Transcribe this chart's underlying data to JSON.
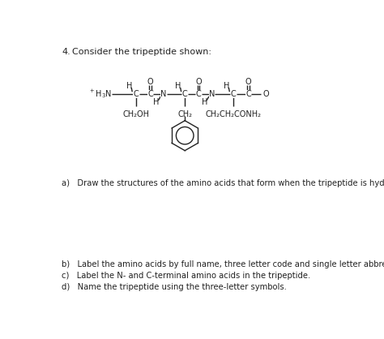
{
  "title_number": "4.",
  "title_text": "Consider the tripeptide shown:",
  "question_a": "a)   Draw the structures of the amino acids that form when the tripeptide is hydrolyzed.",
  "question_b": "b)   Label the amino acids by full name, three letter code and single letter abbreviation.",
  "question_c": "c)   Label the N- and C-terminal amino acids in the tripeptide.",
  "question_d": "d)   Name the tripeptide using the three-letter symbols.",
  "bg_color": "#ffffff",
  "text_color": "#222222",
  "structure_color": "#222222",
  "font_size": 7.0,
  "title_font_size": 8.0,
  "question_font_size": 7.2
}
